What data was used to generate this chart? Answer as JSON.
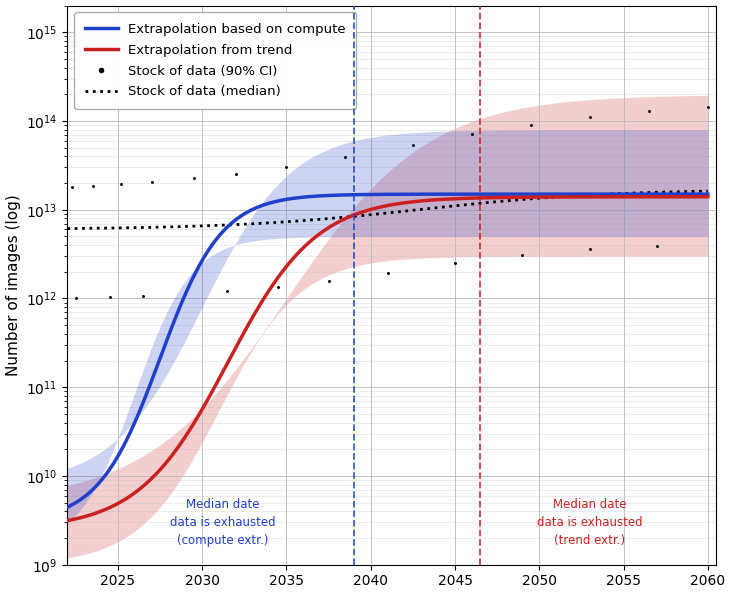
{
  "ylabel": "Number of images (log)",
  "xlim": [
    2022.0,
    2060.5
  ],
  "ylim_log": [
    1000000000.0,
    2000000000000000.0
  ],
  "blue_vline": 2039.0,
  "red_vline": 2046.5,
  "blue_label": "Extrapolation based on compute",
  "red_label": "Extrapolation from trend",
  "dot_ci_label": "Stock of data (90% CI)",
  "dot_median_label": "Stock of data (median)",
  "blue_text": "Median date\ndata is exhausted\n(compute extr.)",
  "red_text": "Median date\ndata is exhausted\n(trend extr.)",
  "blue_color": "#1f3fcc",
  "red_color": "#cc2020",
  "background_color": "#ffffff",
  "grid_color": "#bbbbbb",
  "xticks": [
    2025,
    2030,
    2035,
    2040,
    2045,
    2050,
    2055,
    2060
  ]
}
